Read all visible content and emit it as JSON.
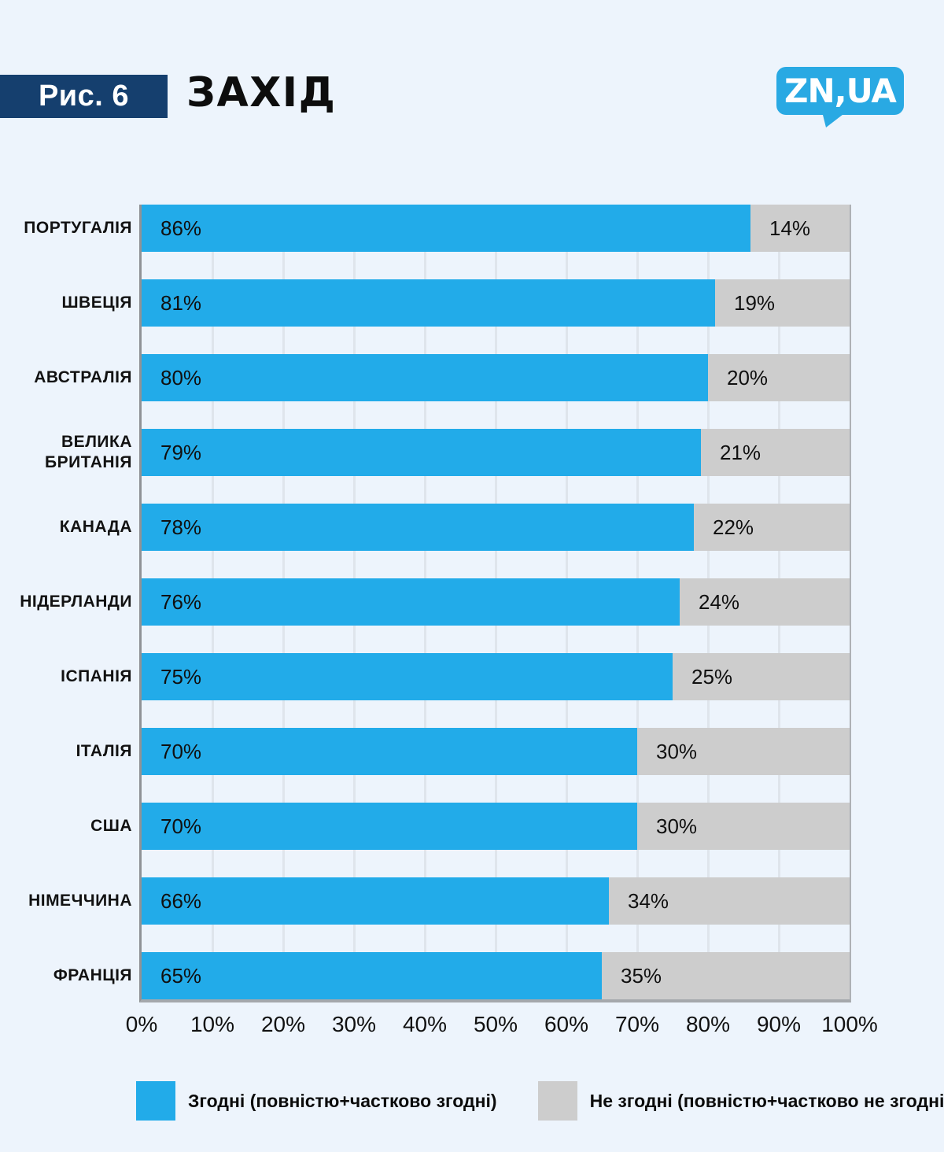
{
  "page": {
    "background": "#edf4fc"
  },
  "header": {
    "figure_label": "Рис. 6",
    "title": "ЗАХІД",
    "figure_box_color": "#153f6e",
    "logo": {
      "text": "ZN,UA",
      "color": "#29a9e3"
    }
  },
  "chart_data": {
    "type": "bar",
    "orientation": "horizontal",
    "stacked": true,
    "title": "ЗАХІД",
    "categories": [
      "ПОРТУГАЛІЯ",
      "ШВЕЦІЯ",
      "АВСТРАЛІЯ",
      "ВЕЛИКА БРИТАНІЯ",
      "КАНАДА",
      "НІДЕРЛАНДИ",
      "ІСПАНІЯ",
      "ІТАЛІЯ",
      "США",
      "НІМЕЧЧИНА",
      "ФРАНЦІЯ"
    ],
    "series": [
      {
        "name": "Згодні (повністю+частково згодні)",
        "color": "#22abe9",
        "values": [
          86,
          81,
          80,
          79,
          78,
          76,
          75,
          70,
          70,
          66,
          65
        ]
      },
      {
        "name": "Не згодні (повністю+частково не згодні)",
        "color": "#cdcdcd",
        "values": [
          14,
          19,
          20,
          21,
          22,
          24,
          25,
          30,
          30,
          34,
          35
        ]
      }
    ],
    "value_suffix": "%",
    "xlim": [
      0,
      100
    ],
    "x_ticks": [
      "0%",
      "10%",
      "20%",
      "30%",
      "40%",
      "50%",
      "60%",
      "70%",
      "80%",
      "90%",
      "100%"
    ],
    "grid": true,
    "legend_position": "bottom"
  }
}
